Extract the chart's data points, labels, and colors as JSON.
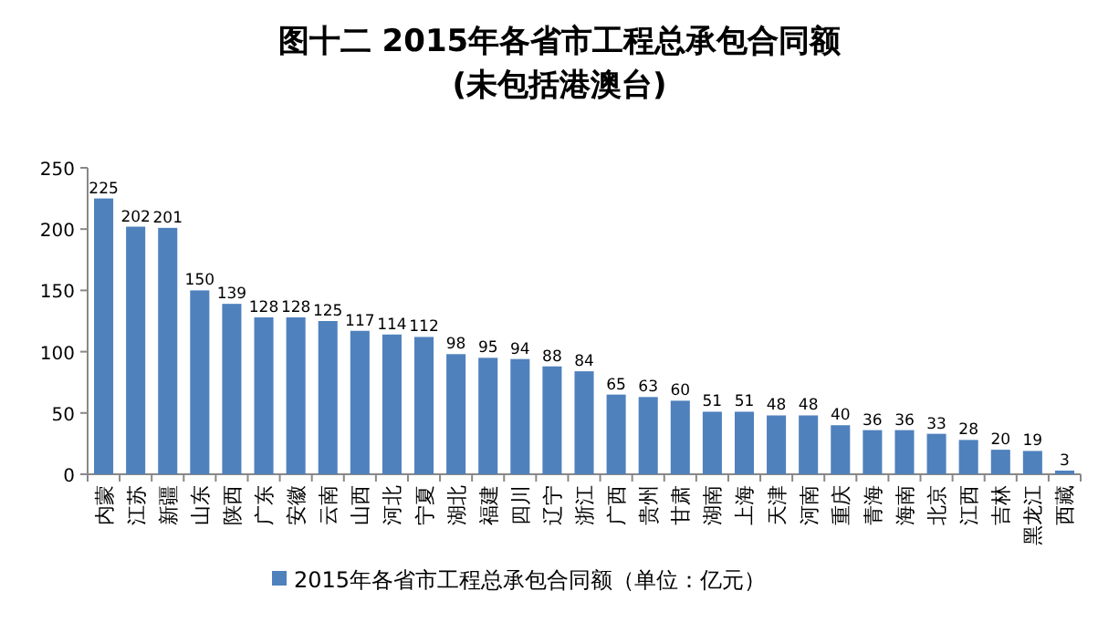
{
  "chart_data": {
    "type": "bar",
    "title": "图十二 2015年各省市工程总承包合同额",
    "subtitle": "(未包括港澳台)",
    "categories": [
      "内蒙",
      "江苏",
      "新疆",
      "山东",
      "陕西",
      "广东",
      "安徽",
      "云南",
      "山西",
      "河北",
      "宁夏",
      "湖北",
      "福建",
      "四川",
      "辽宁",
      "浙江",
      "广西",
      "贵州",
      "甘肃",
      "湖南",
      "上海",
      "天津",
      "河南",
      "重庆",
      "青海",
      "海南",
      "北京",
      "江西",
      "吉林",
      "黑龙江",
      "西藏"
    ],
    "series": [
      {
        "name": "2015年各省市工程总承包合同额（单位：亿元）",
        "color": "#4f81bd",
        "values": [
          225,
          202,
          201,
          150,
          139,
          128,
          128,
          125,
          117,
          114,
          112,
          98,
          95,
          94,
          88,
          84,
          65,
          63,
          60,
          51,
          51,
          48,
          48,
          40,
          36,
          36,
          33,
          28,
          20,
          19,
          3
        ]
      }
    ],
    "ylim": [
      0,
      250
    ],
    "yticks": [
      0,
      50,
      100,
      150,
      200,
      250
    ],
    "data_labels": true,
    "legend": "bottom",
    "grid": false
  }
}
